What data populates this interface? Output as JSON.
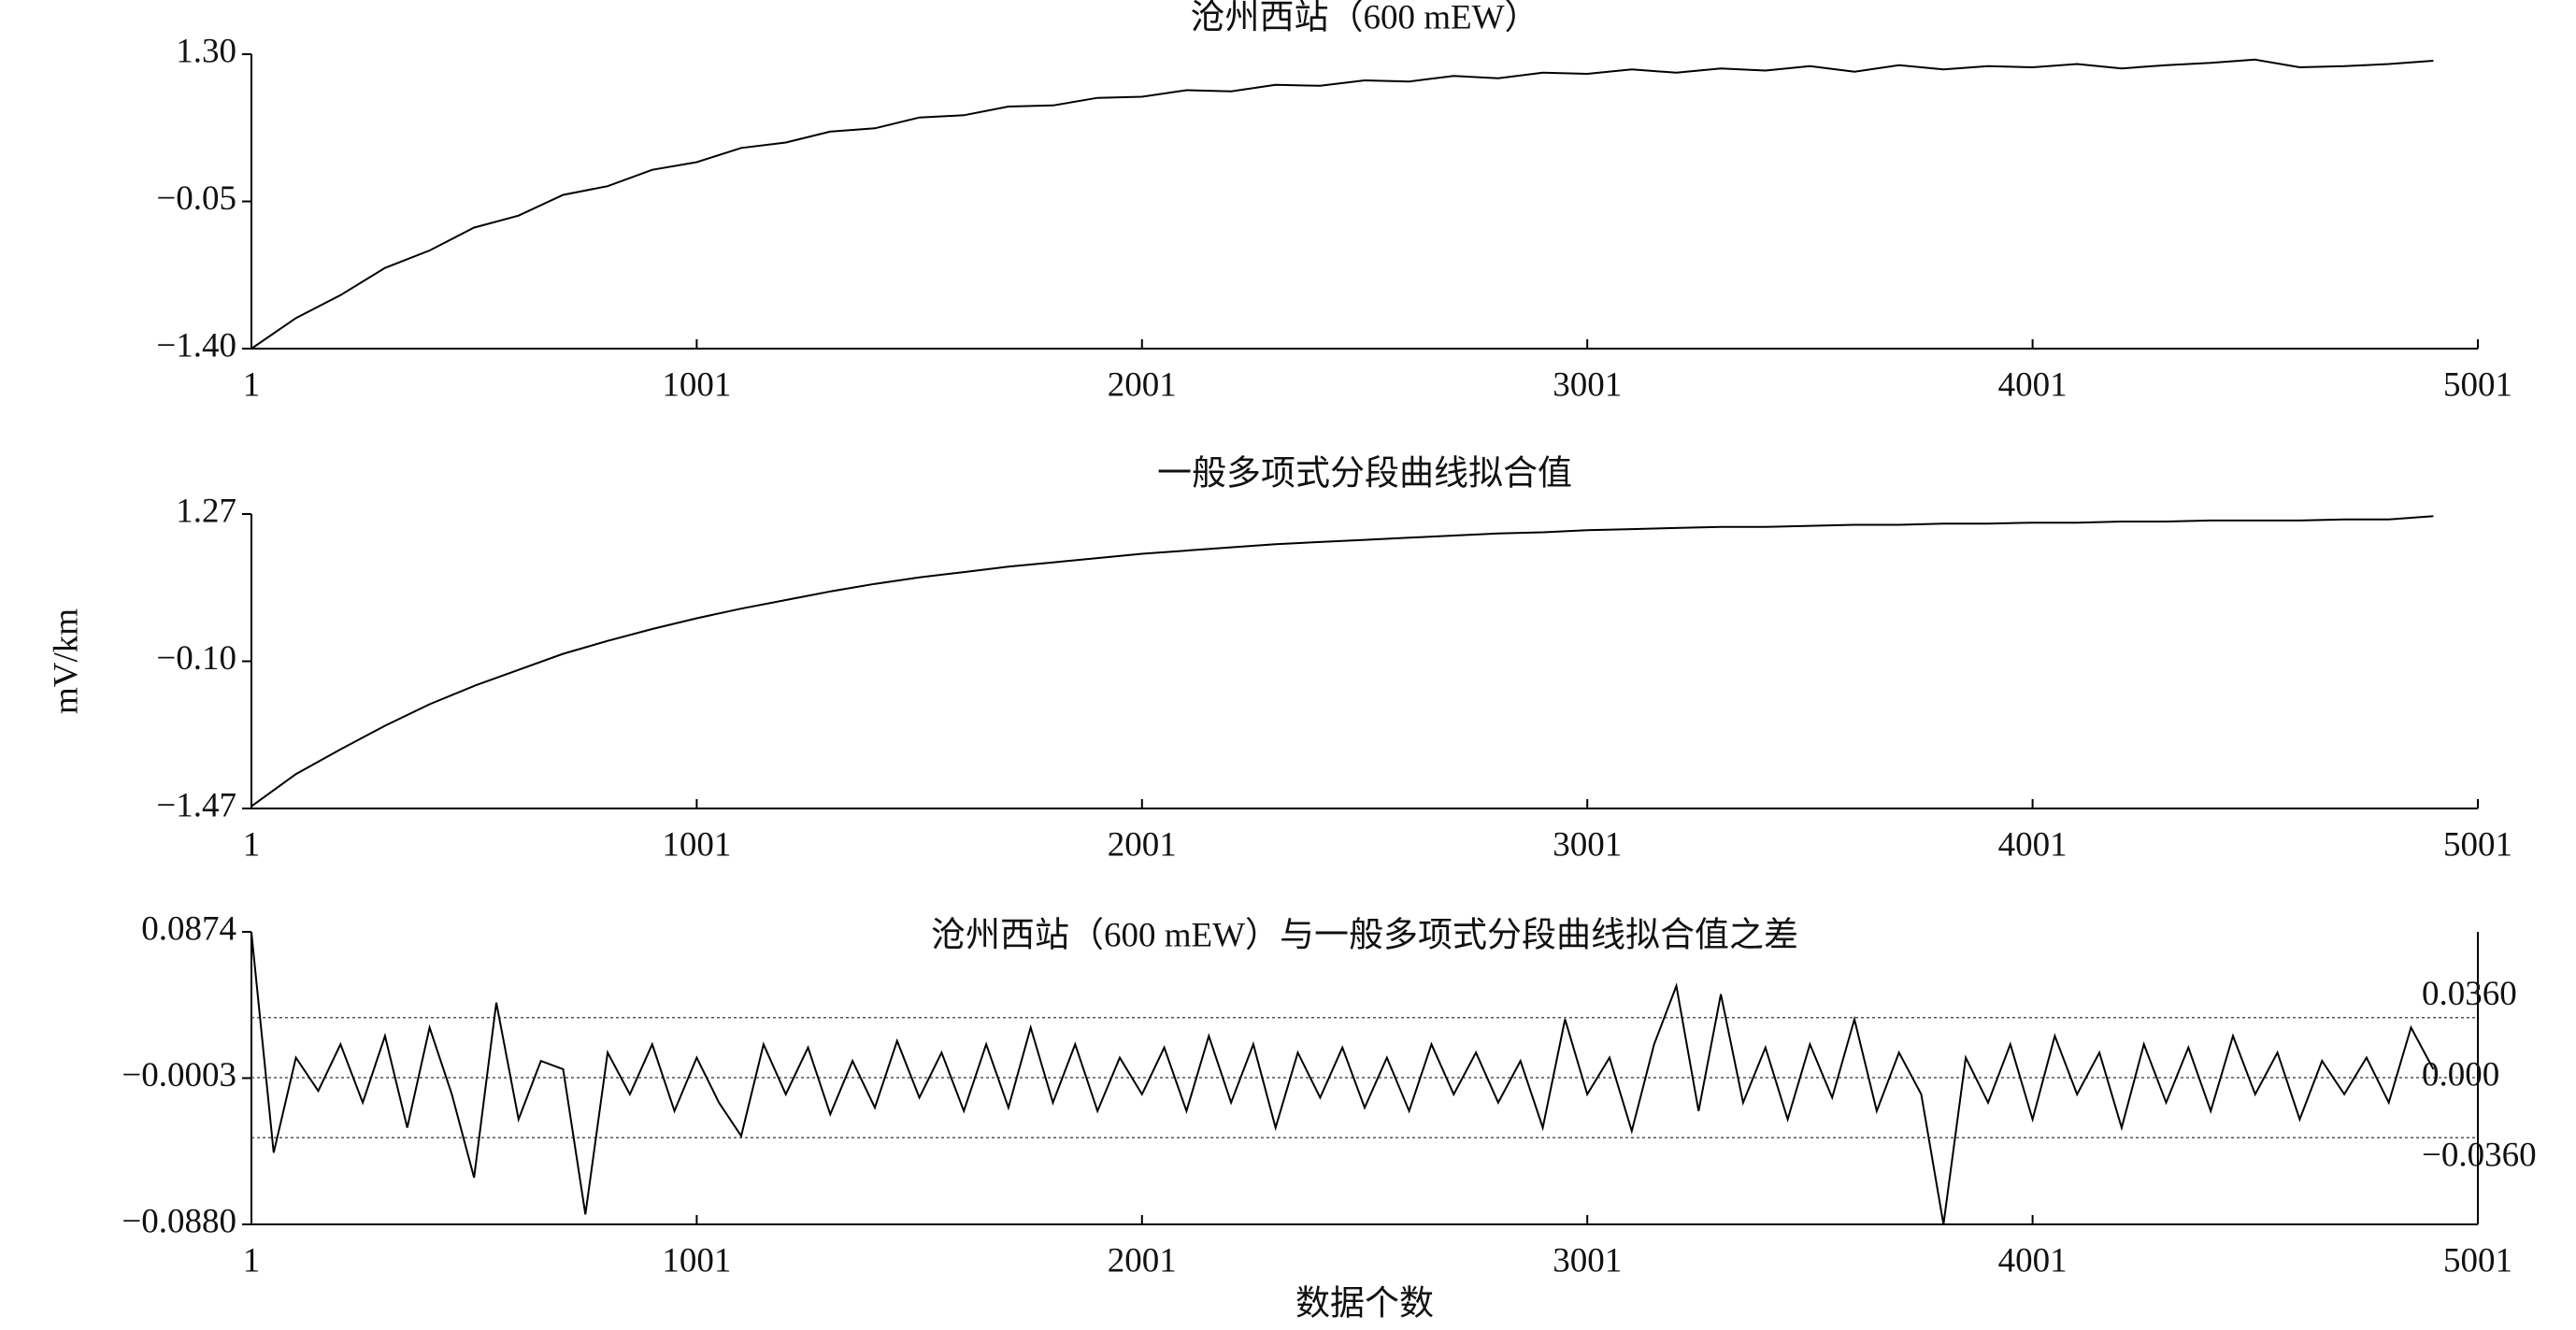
{
  "chart_data": [
    {
      "type": "line",
      "title": "沧州西站（600 mEW）",
      "x": [
        1,
        101,
        201,
        301,
        401,
        501,
        601,
        701,
        801,
        901,
        1001,
        1101,
        1201,
        1301,
        1401,
        1501,
        1601,
        1701,
        1801,
        1901,
        2001,
        2101,
        2201,
        2301,
        2401,
        2501,
        2601,
        2701,
        2801,
        2901,
        3001,
        3101,
        3201,
        3301,
        3401,
        3501,
        3601,
        3701,
        3801,
        3901,
        4001,
        4101,
        4201,
        4301,
        4401,
        4501,
        4601,
        4701,
        4801,
        4901
      ],
      "values": [
        -1.4,
        -1.12,
        -0.91,
        -0.66,
        -0.5,
        -0.29,
        -0.18,
        0.01,
        0.09,
        0.24,
        0.31,
        0.44,
        0.49,
        0.59,
        0.62,
        0.72,
        0.74,
        0.82,
        0.83,
        0.9,
        0.91,
        0.97,
        0.96,
        1.02,
        1.01,
        1.06,
        1.05,
        1.1,
        1.08,
        1.13,
        1.12,
        1.16,
        1.13,
        1.17,
        1.15,
        1.19,
        1.14,
        1.2,
        1.16,
        1.19,
        1.18,
        1.21,
        1.17,
        1.2,
        1.22,
        1.25,
        1.18,
        1.19,
        1.21,
        1.24
      ],
      "color": "#000000",
      "xlim": [
        1,
        5001
      ],
      "xticks": [
        1,
        1001,
        2001,
        3001,
        4001,
        5001
      ],
      "ylim": [
        -1.4,
        1.3
      ],
      "yticks": [
        {
          "value": -1.4,
          "label": "−1.40"
        },
        {
          "value": -0.05,
          "label": "−0.05"
        },
        {
          "value": 1.3,
          "label": "1.30"
        }
      ]
    },
    {
      "type": "line",
      "title": "一般多项式分段曲线拟合值",
      "ylabel": "mV/km",
      "x": [
        1,
        101,
        201,
        301,
        401,
        501,
        601,
        701,
        801,
        901,
        1001,
        1101,
        1201,
        1301,
        1401,
        1501,
        1601,
        1701,
        1801,
        1901,
        2001,
        2101,
        2201,
        2301,
        2401,
        2501,
        2601,
        2701,
        2801,
        2901,
        3001,
        3101,
        3201,
        3301,
        3401,
        3501,
        3601,
        3701,
        3801,
        3901,
        4001,
        4101,
        4201,
        4301,
        4401,
        4501,
        4601,
        4701,
        4801,
        4901
      ],
      "values": [
        -1.45,
        -1.15,
        -0.92,
        -0.7,
        -0.5,
        -0.33,
        -0.18,
        -0.03,
        0.09,
        0.2,
        0.3,
        0.39,
        0.47,
        0.55,
        0.62,
        0.68,
        0.73,
        0.78,
        0.82,
        0.86,
        0.9,
        0.93,
        0.96,
        0.99,
        1.01,
        1.03,
        1.05,
        1.07,
        1.09,
        1.1,
        1.12,
        1.13,
        1.14,
        1.15,
        1.15,
        1.16,
        1.17,
        1.17,
        1.18,
        1.18,
        1.19,
        1.19,
        1.2,
        1.2,
        1.21,
        1.21,
        1.21,
        1.22,
        1.22,
        1.25
      ],
      "color": "#000000",
      "xlim": [
        1,
        5001
      ],
      "xticks": [
        1,
        1001,
        2001,
        3001,
        4001,
        5001
      ],
      "ylim": [
        -1.47,
        1.27
      ],
      "yticks": [
        {
          "value": -1.47,
          "label": "−1.47"
        },
        {
          "value": -0.1,
          "label": "−0.10"
        },
        {
          "value": 1.27,
          "label": "1.27"
        }
      ]
    },
    {
      "type": "line",
      "title": "沧州西站（600 mEW）与一般多项式分段曲线拟合值之差",
      "xlabel": "数据个数",
      "x": [
        1,
        51,
        101,
        151,
        201,
        251,
        301,
        351,
        401,
        451,
        501,
        551,
        601,
        651,
        701,
        751,
        801,
        851,
        901,
        951,
        1001,
        1051,
        1101,
        1151,
        1201,
        1251,
        1301,
        1351,
        1401,
        1451,
        1501,
        1551,
        1601,
        1651,
        1701,
        1751,
        1801,
        1851,
        1901,
        1951,
        2001,
        2051,
        2101,
        2151,
        2201,
        2251,
        2301,
        2351,
        2401,
        2451,
        2501,
        2551,
        2601,
        2651,
        2701,
        2751,
        2801,
        2851,
        2901,
        2951,
        3001,
        3051,
        3101,
        3151,
        3201,
        3251,
        3301,
        3351,
        3401,
        3451,
        3501,
        3551,
        3601,
        3651,
        3701,
        3751,
        3801,
        3851,
        3901,
        3951,
        4001,
        4051,
        4101,
        4151,
        4201,
        4251,
        4301,
        4351,
        4401,
        4451,
        4501,
        4551,
        4601,
        4651,
        4701,
        4751,
        4801,
        4851,
        4901
      ],
      "values": [
        0.087,
        -0.045,
        0.012,
        -0.008,
        0.02,
        -0.015,
        0.025,
        -0.03,
        0.03,
        -0.01,
        -0.06,
        0.045,
        -0.025,
        0.01,
        0.005,
        -0.082,
        0.015,
        -0.01,
        0.02,
        -0.02,
        0.012,
        -0.015,
        -0.035,
        0.02,
        -0.01,
        0.018,
        -0.022,
        0.01,
        -0.018,
        0.022,
        -0.012,
        0.015,
        -0.02,
        0.02,
        -0.018,
        0.03,
        -0.015,
        0.02,
        -0.02,
        0.012,
        -0.01,
        0.018,
        -0.02,
        0.025,
        -0.015,
        0.02,
        -0.03,
        0.015,
        -0.012,
        0.018,
        -0.018,
        0.012,
        -0.02,
        0.02,
        -0.01,
        0.015,
        -0.015,
        0.01,
        -0.03,
        0.035,
        -0.01,
        0.012,
        -0.032,
        0.02,
        0.055,
        -0.02,
        0.05,
        -0.015,
        0.018,
        -0.025,
        0.02,
        -0.012,
        0.035,
        -0.02,
        0.015,
        -0.01,
        -0.088,
        0.012,
        -0.015,
        0.02,
        -0.025,
        0.025,
        -0.01,
        0.015,
        -0.03,
        0.02,
        -0.015,
        0.018,
        -0.02,
        0.025,
        -0.01,
        0.015,
        -0.025,
        0.01,
        -0.01,
        0.012,
        -0.015,
        0.03,
        0.005
      ],
      "color": "#000000",
      "xlim": [
        1,
        5001
      ],
      "xticks": [
        1,
        1001,
        2001,
        3001,
        4001,
        5001
      ],
      "ylim": [
        -0.088,
        0.0874
      ],
      "yticks": [
        {
          "value": -0.088,
          "label": "−0.0880"
        },
        {
          "value": -0.0003,
          "label": "−0.0003"
        },
        {
          "value": 0.0874,
          "label": "0.0874"
        }
      ],
      "hlines": [
        {
          "value": 0.036,
          "label": "0.0360"
        },
        {
          "value": 0,
          "label": "0.000"
        },
        {
          "value": -0.036,
          "label": "−0.0360"
        }
      ]
    }
  ]
}
